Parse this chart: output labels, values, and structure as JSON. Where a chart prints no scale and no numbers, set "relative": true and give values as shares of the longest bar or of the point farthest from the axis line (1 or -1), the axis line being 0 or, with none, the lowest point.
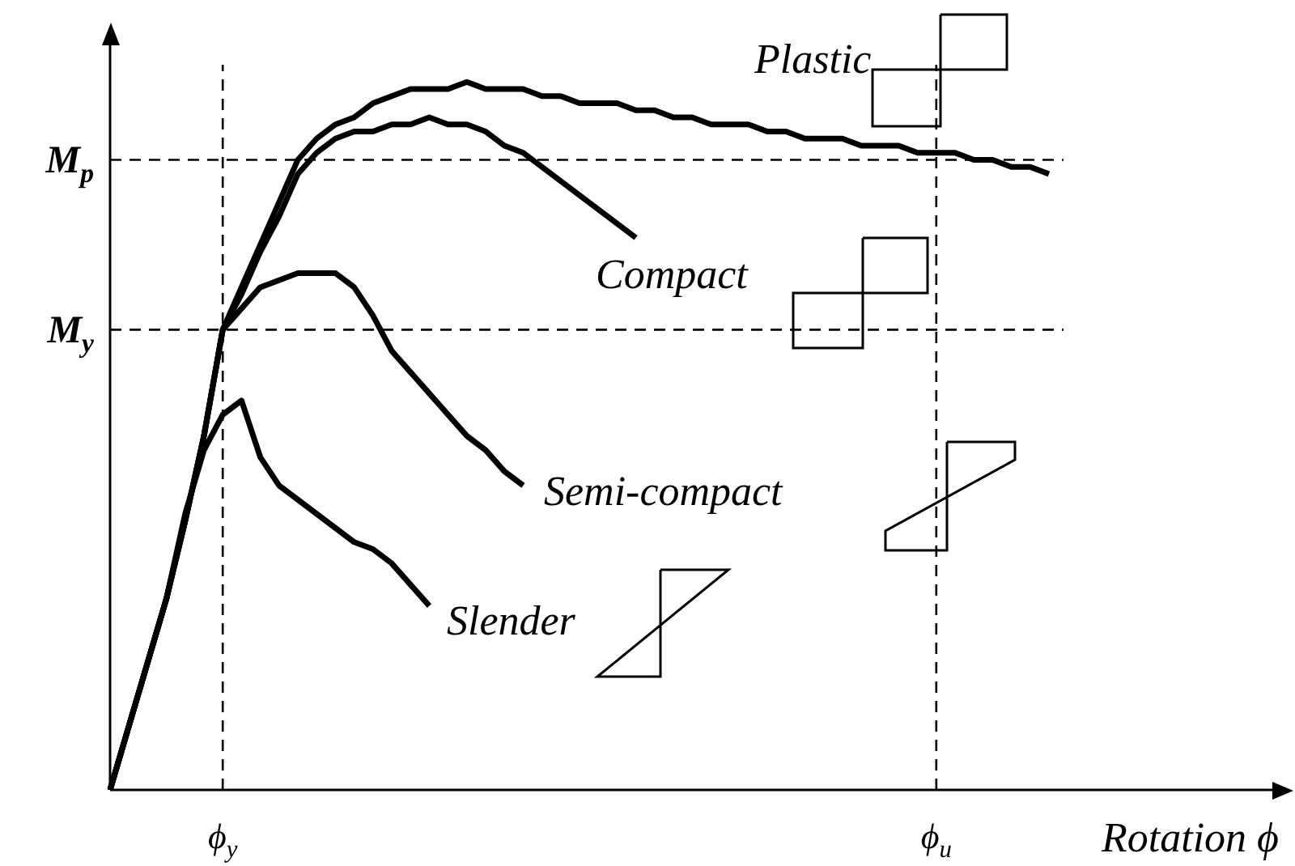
{
  "chart_data": {
    "type": "line",
    "relative": true,
    "xlabel": "Rotation ϕ",
    "legend": false,
    "categories": [
      null,
      null,
      null,
      null,
      null,
      null,
      "ϕ$_{y}$",
      null,
      null,
      null,
      null,
      null,
      null,
      null,
      null,
      null,
      null,
      null,
      null,
      null,
      null,
      null,
      null,
      null,
      null,
      null,
      null,
      null,
      null,
      null,
      null,
      null,
      null,
      null,
      null,
      null,
      null,
      null,
      null,
      null,
      null,
      null,
      null,
      null,
      "ϕ$_{u}$",
      null,
      null,
      null,
      null,
      null,
      null
    ],
    "marker": "none",
    "line_style": "solid",
    "series": [
      {
        "name": "Plastic",
        "color": "#000000",
        "values": [
          0,
          0.09,
          0.18,
          0.27,
          0.38,
          0.5,
          0.65,
          0.71,
          0.77,
          0.83,
          0.89,
          0.92,
          0.94,
          0.95,
          0.97,
          0.98,
          0.99,
          0.99,
          0.99,
          1,
          0.99,
          0.99,
          0.99,
          0.98,
          0.98,
          0.97,
          0.97,
          0.97,
          0.96,
          0.96,
          0.95,
          0.95,
          0.94,
          0.94,
          0.94,
          0.93,
          0.93,
          0.92,
          0.92,
          0.92,
          0.91,
          0.91,
          0.91,
          0.9,
          0.9,
          0.9,
          0.89,
          0.89,
          0.88,
          0.88,
          0.87
        ]
      },
      {
        "name": "Compact",
        "color": "#000000",
        "values": [
          0,
          0.09,
          0.18,
          0.27,
          0.38,
          0.5,
          0.65,
          0.7,
          0.76,
          0.81,
          0.87,
          0.9,
          0.92,
          0.93,
          0.93,
          0.94,
          0.94,
          0.95,
          0.94,
          0.94,
          0.93,
          0.91,
          0.9,
          0.88,
          0.86,
          0.84,
          0.82,
          0.8,
          0.78,
          null,
          null,
          null,
          null,
          null,
          null,
          null,
          null,
          null,
          null,
          null,
          null,
          null,
          null,
          null,
          null,
          null,
          null,
          null,
          null,
          null,
          null
        ]
      },
      {
        "name": "Semi-compact",
        "color": "#000000",
        "values": [
          0,
          0.09,
          0.18,
          0.27,
          0.38,
          0.5,
          0.65,
          0.68,
          0.71,
          0.72,
          0.73,
          0.73,
          0.73,
          0.71,
          0.67,
          0.62,
          0.59,
          0.56,
          0.53,
          0.5,
          0.48,
          0.45,
          0.43,
          null,
          null,
          null,
          null,
          null,
          null,
          null,
          null,
          null,
          null,
          null,
          null,
          null,
          null,
          null,
          null,
          null,
          null,
          null,
          null,
          null,
          null,
          null,
          null,
          null,
          null,
          null,
          null
        ]
      },
      {
        "name": "Slender",
        "color": "#000000",
        "values": [
          0,
          0.09,
          0.18,
          0.27,
          0.39,
          0.48,
          0.53,
          0.55,
          0.47,
          0.43,
          0.41,
          0.39,
          0.37,
          0.35,
          0.34,
          0.32,
          0.29,
          0.26,
          null,
          null,
          null,
          null,
          null,
          null,
          null,
          null,
          null,
          null,
          null,
          null,
          null,
          null,
          null,
          null,
          null,
          null,
          null,
          null,
          null,
          null,
          null,
          null,
          null,
          null,
          null,
          null,
          null,
          null,
          null,
          null,
          null
        ]
      }
    ],
    "ref_lines": [
      {
        "axis": "y",
        "value": 0.89,
        "label": "M$_{p}$",
        "line_style": "dashed"
      },
      {
        "axis": "y",
        "value": 0.65,
        "label": "M$_{y}$",
        "line_style": "dashed"
      },
      {
        "axis": "x",
        "value": "ϕ$_{y}$",
        "line_style": "dashed"
      },
      {
        "axis": "x",
        "value": "ϕ$_{u}$",
        "line_style": "dashed"
      }
    ]
  }
}
